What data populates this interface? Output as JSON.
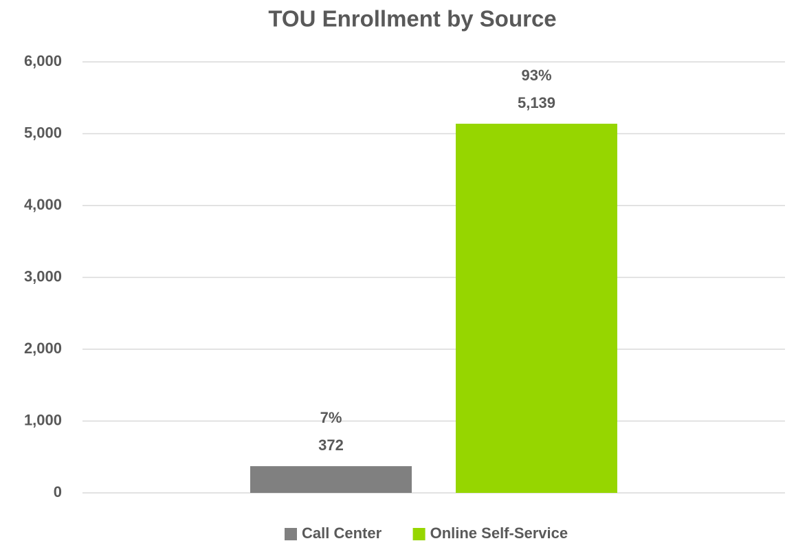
{
  "chart_data": {
    "type": "bar",
    "title": "TOU Enrollment by Source",
    "categories": [
      null
    ],
    "series": [
      {
        "name": "Call Center",
        "color": "#808080",
        "values": [
          372
        ],
        "shares": [
          7
        ],
        "share_labels": [
          "7%"
        ]
      },
      {
        "name": "Online Self-Service",
        "color": "#96d600",
        "values": [
          5139
        ],
        "value_labels": [
          "5,139"
        ],
        "shares": [
          93
        ],
        "share_labels": [
          "93%"
        ]
      }
    ],
    "ylim": [
      0,
      6000
    ],
    "yticks": [
      0,
      {
        "value": 1000,
        "label": "1,000"
      },
      {
        "value": 2000,
        "label": "2,000"
      },
      {
        "value": 3000,
        "label": "3,000"
      },
      {
        "value": 4000,
        "label": "4,000"
      },
      {
        "value": 5000,
        "label": "5,000"
      },
      {
        "value": 6000,
        "label": "6,000"
      }
    ],
    "grid": true,
    "legend": "bottom"
  }
}
